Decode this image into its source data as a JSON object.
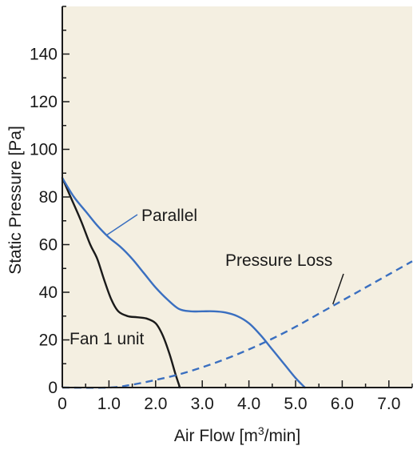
{
  "chart_data": {
    "type": "line",
    "title": "",
    "xlabel_main": "Air Flow [m",
    "xlabel_sup": "3",
    "xlabel_tail": "/min]",
    "ylabel": "Static Pressure [Pa]",
    "xlim": [
      0,
      7.5
    ],
    "ylim": [
      0,
      160
    ],
    "x_ticks": [
      0,
      1.0,
      2.0,
      3.0,
      4.0,
      5.0,
      6.0,
      7.0
    ],
    "x_tick_labels": [
      "0",
      "1.0",
      "2.0",
      "3.0",
      "4.0",
      "5.0",
      "6.0",
      "7.0"
    ],
    "y_ticks": [
      0,
      20,
      40,
      60,
      80,
      100,
      120,
      140
    ],
    "y_tick_labels": [
      "0",
      "20",
      "40",
      "60",
      "80",
      "100",
      "120",
      "140"
    ],
    "grid": false,
    "colors": {
      "background": "#f4efe1",
      "parallel": "#3a6fc0",
      "fan1": "#1a1a1a",
      "loss": "#3a6fc0",
      "axis": "#1a1a1a"
    },
    "series": [
      {
        "key": "fan1",
        "style": "solid",
        "x": [
          0,
          0.2,
          0.4,
          0.6,
          0.75,
          0.9,
          1.05,
          1.2,
          1.4,
          1.6,
          1.8,
          2.0,
          2.15,
          2.3,
          2.42,
          2.52
        ],
        "y": [
          88,
          79,
          70,
          60,
          54,
          45,
          37,
          32,
          30,
          29.5,
          29,
          27,
          22,
          14,
          6,
          0
        ]
      },
      {
        "key": "parallel",
        "style": "solid",
        "x": [
          0,
          0.25,
          0.5,
          0.75,
          1.0,
          1.25,
          1.5,
          1.75,
          2.0,
          2.25,
          2.5,
          2.75,
          3.0,
          3.25,
          3.5,
          3.75,
          4.0,
          4.25,
          4.5,
          4.75,
          5.0,
          5.2
        ],
        "y": [
          88,
          80,
          74,
          68,
          63,
          59,
          54,
          48,
          42,
          37,
          33,
          32,
          32,
          32,
          31.5,
          30,
          27,
          22,
          16,
          10,
          4,
          0
        ]
      },
      {
        "key": "loss",
        "style": "dashed",
        "x": [
          0,
          1.0,
          1.5,
          2.0,
          2.5,
          3.0,
          3.5,
          4.0,
          4.5,
          5.0,
          5.5,
          6.0,
          6.5,
          7.0,
          7.5
        ],
        "y": [
          0,
          0,
          1.2,
          3.2,
          5.5,
          8.5,
          12,
          16,
          20.5,
          25.5,
          31,
          36.5,
          42,
          47.5,
          53
        ]
      }
    ],
    "annotations": {
      "parallel": "Parallel",
      "pressure_loss": "Pressure Loss",
      "fan1": "Fan 1 unit"
    }
  }
}
